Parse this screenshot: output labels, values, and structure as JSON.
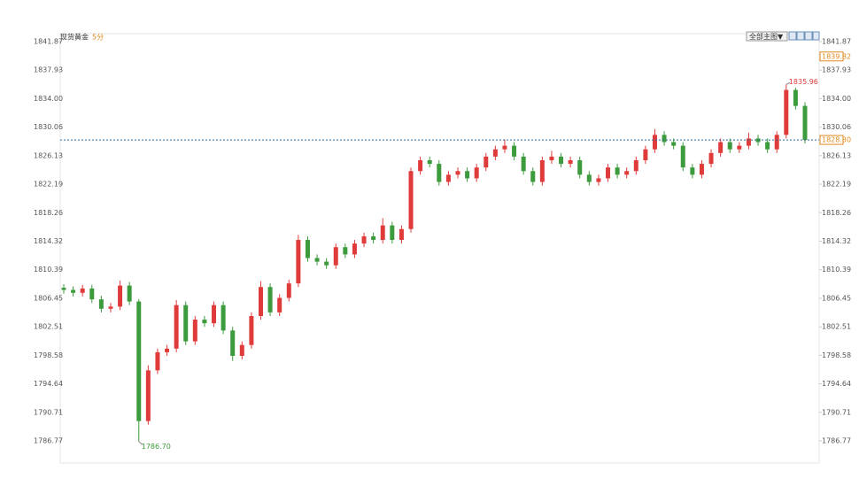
{
  "chart_data": {
    "type": "candlestick",
    "title": "现货黄金",
    "period": "5分",
    "menu": "全部主图▼",
    "up_color": "#e03b3b",
    "down_color": "#3c9b3c",
    "ylim": [
      1786.77,
      1841.87
    ],
    "yticks": [
      1841.87,
      1837.93,
      {
        "value": 1834,
        "label": "1834.00"
      },
      1830.06,
      1826.13,
      1822.19,
      1818.26,
      1814.32,
      1810.39,
      1806.45,
      1802.51,
      1798.58,
      1794.64,
      1790.71,
      1786.77
    ],
    "open": [
      1807.9,
      1807.6,
      1807.2,
      1807.8,
      1806.3,
      1805.0,
      1805.3,
      1808.2,
      1806.0,
      1789.5,
      1796.5,
      1799.0,
      1799.5,
      1805.5,
      1800.5,
      1803.5,
      1803.0,
      1805.5,
      1802.0,
      1798.5,
      1800.0,
      1804.0,
      1808.0,
      1804.5,
      1806.5,
      1808.5,
      1814.5,
      1812.0,
      1811.5,
      1811.0,
      1813.5,
      1812.5,
      1814.0,
      1815.0,
      1814.5,
      1816.5,
      1814.5,
      1816.0,
      1824.0,
      1825.5,
      1825.0,
      1822.5,
      1823.5,
      1824.0,
      1823.0,
      1824.5,
      1826.0,
      1827.0,
      1827.5,
      1826.0,
      1824.0,
      1822.5,
      1825.5,
      1826.0,
      1825.0,
      1825.5,
      1823.5,
      1822.5,
      1823.0,
      1824.5,
      1823.5,
      1824.0,
      1825.5,
      1827.0,
      1829.0,
      1828.0,
      1827.5,
      1824.5,
      1823.5,
      1825.0,
      1826.5,
      1828.0,
      1827.0,
      1827.5,
      1828.5,
      1828.0,
      1827.0,
      1829.0,
      1835.2,
      1833.0
    ],
    "high": [
      1808.4,
      1808.1,
      1808.3,
      1808.3,
      1806.8,
      1805.8,
      1808.9,
      1808.7,
      1806.3,
      1797.2,
      1799.5,
      1800.0,
      1806.2,
      1806.0,
      1804.0,
      1804.0,
      1806.0,
      1806.0,
      1802.5,
      1800.5,
      1804.5,
      1808.8,
      1808.5,
      1807.0,
      1809.0,
      1815.2,
      1815.0,
      1812.5,
      1812.0,
      1814.0,
      1814.0,
      1814.5,
      1815.5,
      1815.5,
      1817.5,
      1817.0,
      1816.5,
      1824.5,
      1826.0,
      1826.0,
      1825.5,
      1824.0,
      1824.5,
      1824.5,
      1825.0,
      1826.5,
      1827.5,
      1828.4,
      1828.0,
      1826.5,
      1824.5,
      1826.0,
      1826.8,
      1826.5,
      1826.0,
      1826.0,
      1824.0,
      1823.5,
      1825.0,
      1825.0,
      1824.5,
      1826.0,
      1827.5,
      1829.8,
      1829.5,
      1828.5,
      1828.0,
      1825.0,
      1825.5,
      1827.0,
      1828.5,
      1828.5,
      1828.0,
      1829.3,
      1829.0,
      1828.5,
      1829.5,
      1835.96,
      1835.5,
      1833.5
    ],
    "low": [
      1807.1,
      1806.7,
      1806.7,
      1805.8,
      1804.5,
      1804.5,
      1804.8,
      1805.5,
      1786.7,
      1789.0,
      1796.0,
      1798.5,
      1799.0,
      1800.0,
      1800.0,
      1802.5,
      1802.5,
      1801.5,
      1797.8,
      1798.0,
      1799.5,
      1803.5,
      1804.0,
      1804.0,
      1806.0,
      1808.0,
      1811.5,
      1811.0,
      1810.5,
      1810.5,
      1812.0,
      1812.0,
      1813.5,
      1814.0,
      1814.0,
      1814.0,
      1814.0,
      1815.5,
      1823.5,
      1824.5,
      1822.0,
      1822.0,
      1823.0,
      1822.5,
      1822.5,
      1824.0,
      1825.5,
      1826.5,
      1825.5,
      1823.5,
      1822.0,
      1822.0,
      1825.0,
      1824.5,
      1824.5,
      1823.0,
      1822.0,
      1822.0,
      1822.5,
      1823.0,
      1823.0,
      1823.5,
      1825.0,
      1826.5,
      1827.5,
      1827.0,
      1824.0,
      1823.0,
      1823.0,
      1824.5,
      1826.0,
      1826.5,
      1826.5,
      1827.0,
      1827.5,
      1826.5,
      1826.5,
      1828.5,
      1832.5,
      1827.8
    ],
    "close": [
      1807.6,
      1807.2,
      1807.8,
      1806.3,
      1805.0,
      1805.3,
      1808.2,
      1806.0,
      1789.5,
      1796.5,
      1799.0,
      1799.5,
      1805.5,
      1800.5,
      1803.5,
      1803.0,
      1805.5,
      1802.0,
      1798.5,
      1800.0,
      1804.0,
      1808.0,
      1804.5,
      1806.5,
      1808.5,
      1814.5,
      1812.0,
      1811.5,
      1811.0,
      1813.5,
      1812.5,
      1814.0,
      1815.0,
      1814.5,
      1816.5,
      1814.5,
      1816.0,
      1824.0,
      1825.5,
      1825.0,
      1822.5,
      1823.5,
      1824.0,
      1823.0,
      1824.5,
      1826.0,
      1827.0,
      1827.5,
      1826.0,
      1824.0,
      1822.5,
      1825.5,
      1826.0,
      1825.0,
      1825.5,
      1823.5,
      1822.5,
      1823.0,
      1824.5,
      1823.5,
      1824.0,
      1825.5,
      1827.0,
      1829.0,
      1828.0,
      1827.5,
      1824.5,
      1823.5,
      1825.0,
      1826.5,
      1828.0,
      1827.0,
      1827.5,
      1828.5,
      1828.0,
      1827.0,
      1829.0,
      1835.2,
      1833.0,
      1828.3
    ],
    "extremes": [
      {
        "value": 1835.96,
        "label": "1835.96"
      },
      {
        "value": 1786.7,
        "label": "1786.70"
      }
    ],
    "price_labels": [
      {
        "value": 1839.82,
        "label": "1839.82"
      },
      {
        "value": 1828.3,
        "label": "1828.30"
      }
    ]
  }
}
